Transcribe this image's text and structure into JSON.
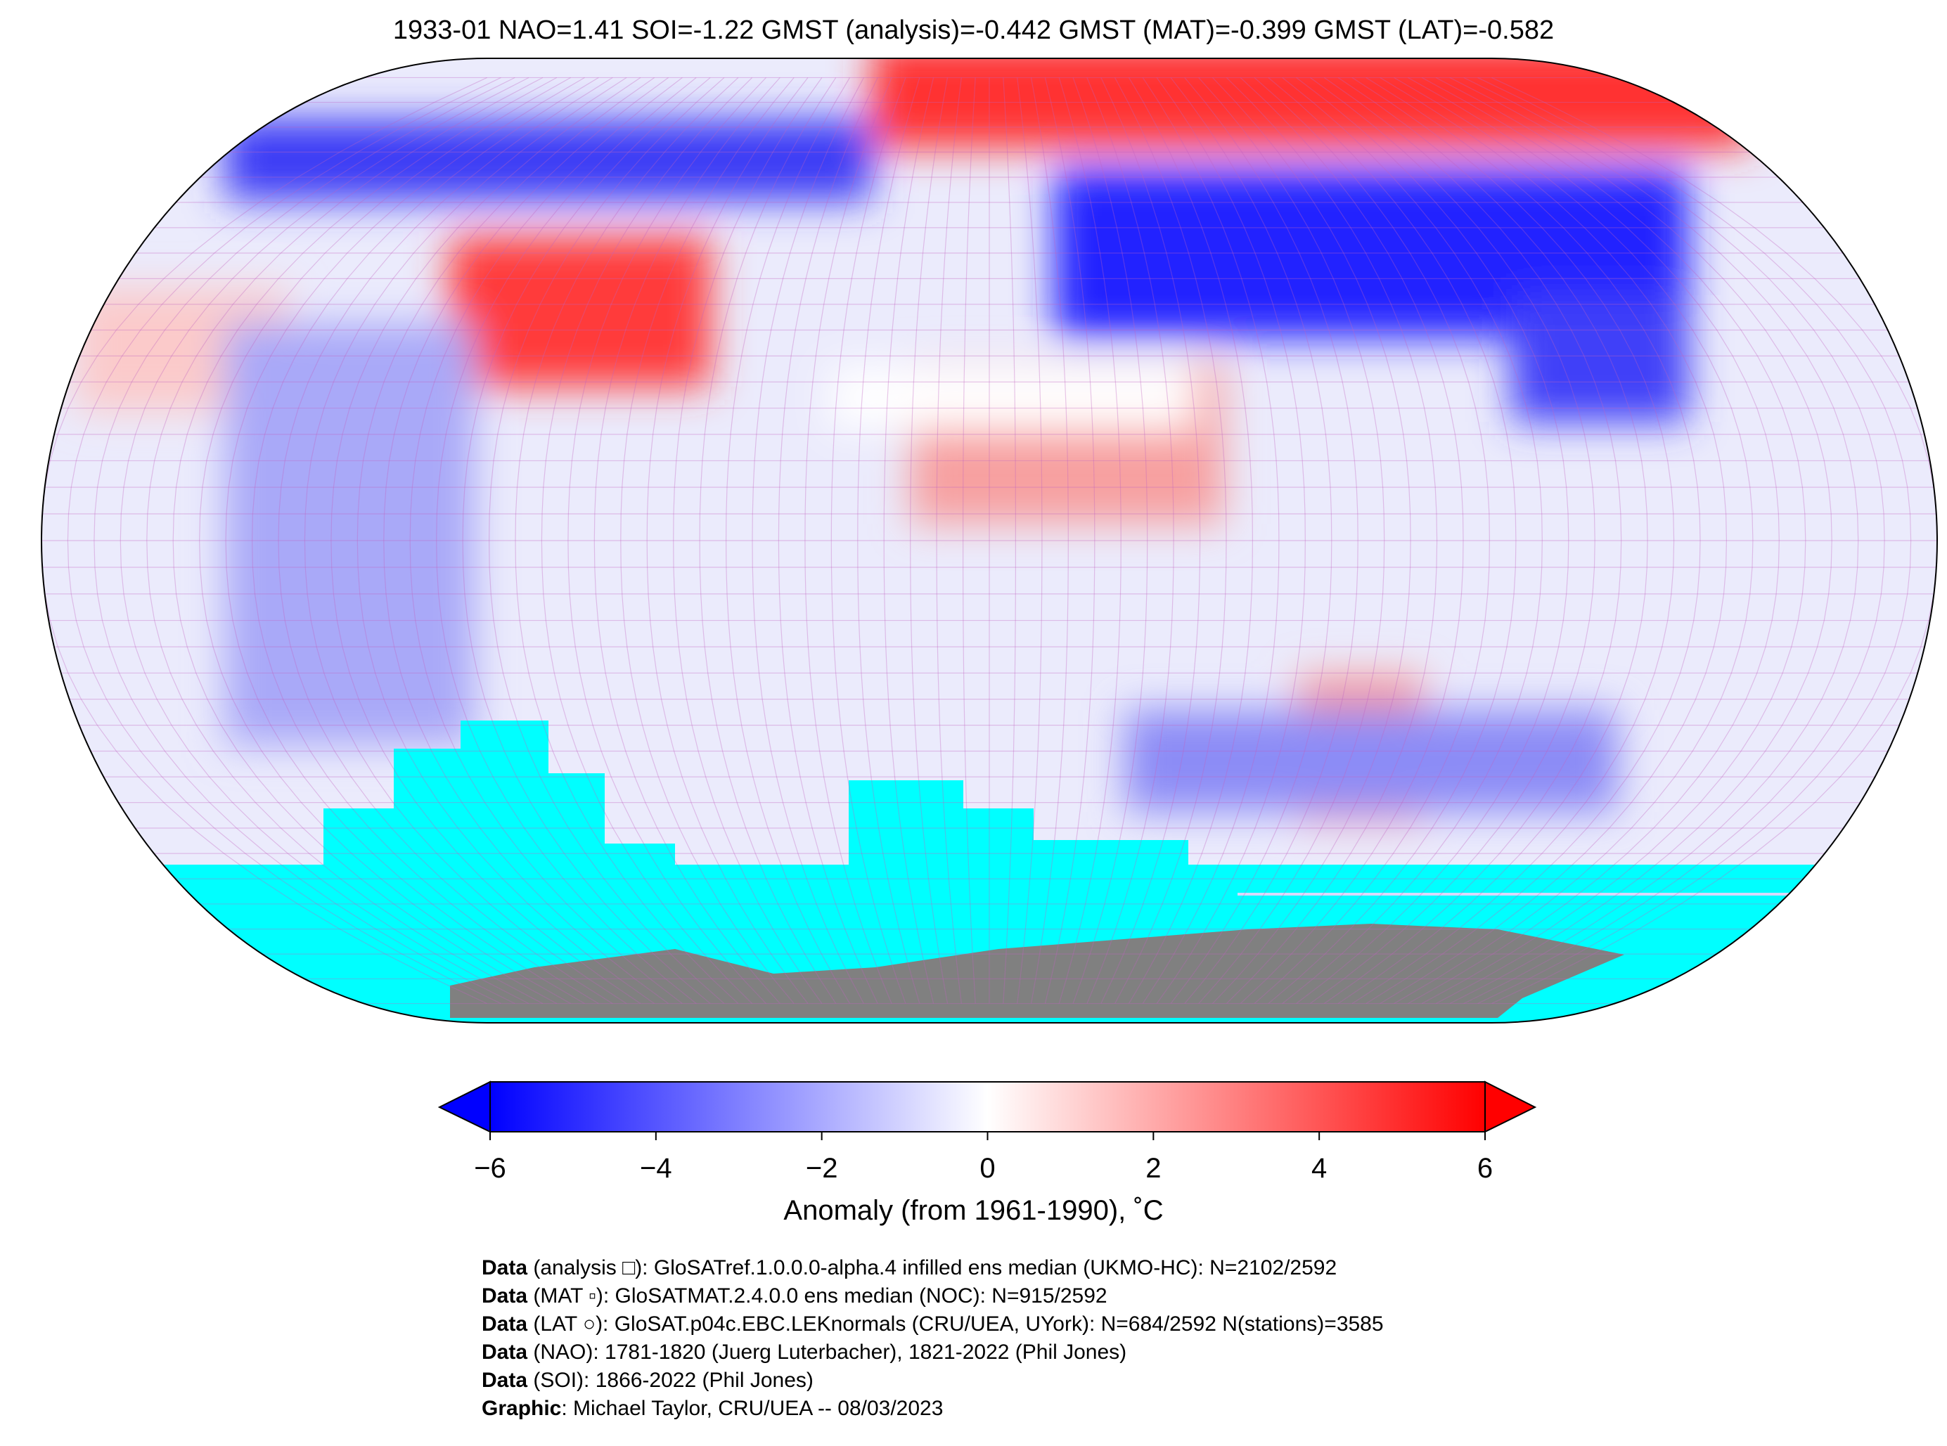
{
  "title": "1933-01 NAO=1.41 SOI=-1.22 GMST (analysis)=-0.442 GMST (MAT)=-0.399 GMST (LAT)=-0.582",
  "colors": {
    "min": "#0000ff",
    "mid": "#ffffff",
    "max": "#ff0000",
    "sea_ice": "#00ffff",
    "land_mask": "#808080",
    "grid": "#c060c0"
  },
  "colorbar": {
    "ticks": [
      "−6",
      "−4",
      "−2",
      "0",
      "2",
      "4",
      "6"
    ],
    "tick_values": [
      -6,
      -4,
      -2,
      0,
      2,
      4,
      6
    ],
    "label": "Anomaly (from 1961-1990), ˚C"
  },
  "footer": [
    {
      "bold": "Data",
      "text": " (analysis □): GloSATref.1.0.0.0-alpha.4 infilled ens median (UKMO-HC): N=2102/2592"
    },
    {
      "bold": "Data",
      "text": " (MAT ▫): GloSATMAT.2.4.0.0 ens median (NOC): N=915/2592"
    },
    {
      "bold": "Data",
      "text": " (LAT ○): GloSAT.p04c.EBC.LEKnormals (CRU/UEA, UYork): N=684/2592 N(stations)=3585"
    },
    {
      "bold": "Data",
      "text": " (NAO): 1781-1820 (Juerg Luterbacher), 1821-2022 (Phil Jones)"
    },
    {
      "bold": "Data",
      "text": " (SOI): 1866-2022 (Phil Jones)"
    },
    {
      "bold": "Graphic",
      "text": ": Michael Taylor, CRU/UEA -- 08/03/2023"
    }
  ]
}
